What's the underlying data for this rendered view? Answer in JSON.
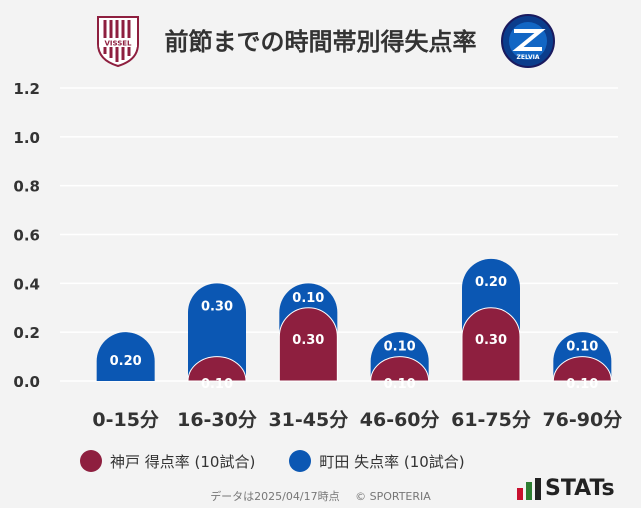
{
  "title": "前節までの時間帯別得失点率",
  "colors": {
    "kobe": "#8e1f3f",
    "machida": "#0b57b3",
    "grid": "#ffffff",
    "text": "#333333"
  },
  "logos": {
    "left": "VISSEL",
    "right": "ZELVIA"
  },
  "chart_data": {
    "type": "bar",
    "categories": [
      "0-15分",
      "16-30分",
      "31-45分",
      "46-60分",
      "61-75分",
      "76-90分"
    ],
    "series": [
      {
        "name": "神戸 得点率 (10試合)",
        "values": [
          0.0,
          0.1,
          0.3,
          0.1,
          0.3,
          0.1
        ]
      },
      {
        "name": "町田 失点率 (10試合)",
        "values": [
          0.2,
          0.3,
          0.1,
          0.1,
          0.2,
          0.1
        ]
      }
    ],
    "stacked": true,
    "ylim": [
      0,
      1.2
    ],
    "yticks": [
      "0.0",
      "0.2",
      "0.4",
      "0.6",
      "0.8",
      "1.0",
      "1.2"
    ],
    "grid": true,
    "legend": "bottom"
  },
  "legend": [
    {
      "label": "神戸 得点率 (10試合)"
    },
    {
      "label": "町田 失点率 (10試合)"
    }
  ],
  "footer": {
    "text": "データは2025/04/17時点",
    "copyright": "© SPORTERIA"
  },
  "brand": "STATs"
}
